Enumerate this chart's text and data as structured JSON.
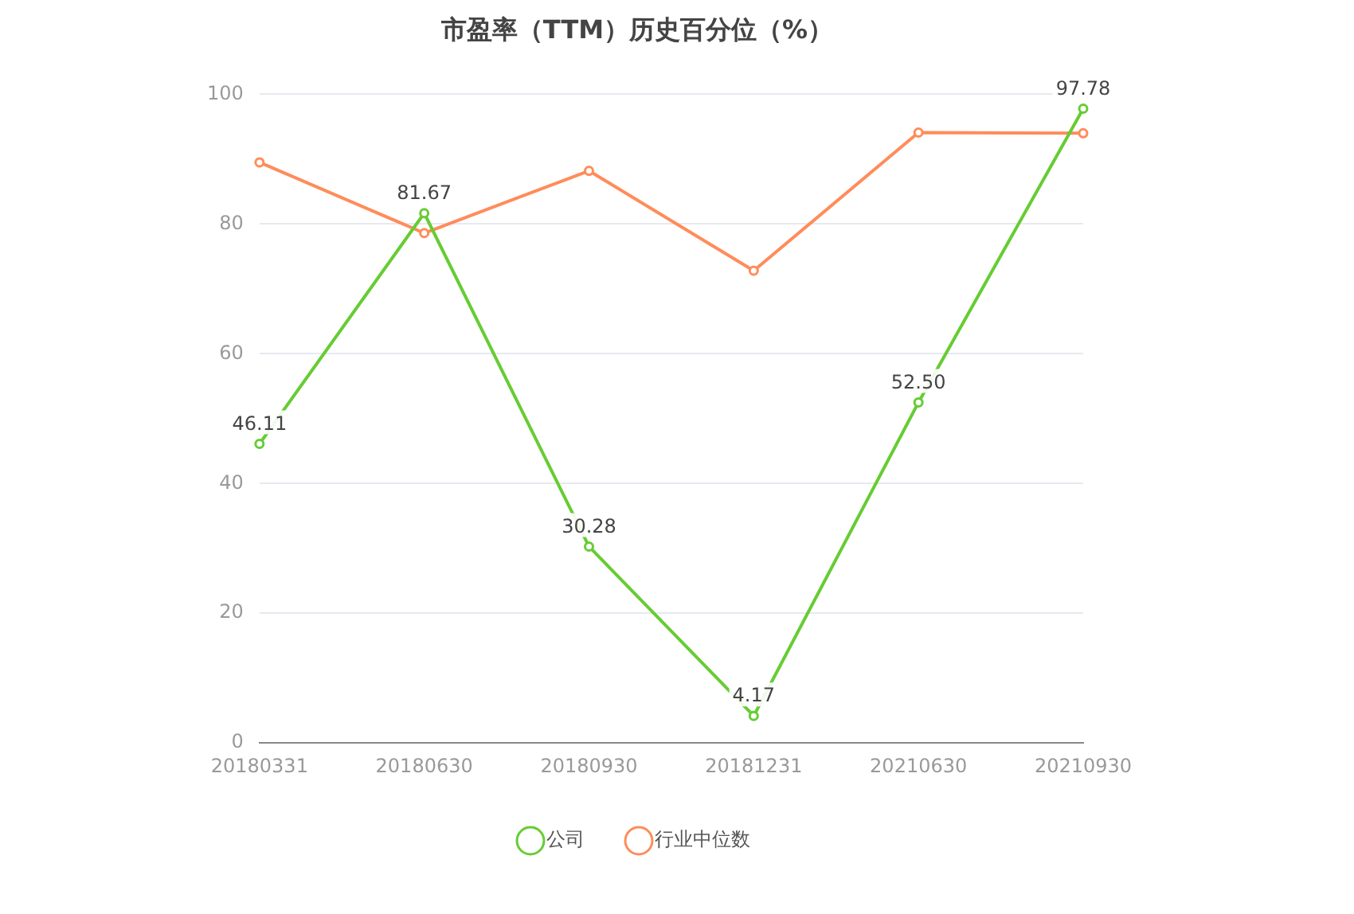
{
  "chart_data": {
    "type": "line",
    "title": "市盈率（TTM）历史百分位（%）",
    "categories": [
      "20180331",
      "20180630",
      "20180930",
      "20181231",
      "20210630",
      "20210930"
    ],
    "series": [
      {
        "name": "公司",
        "color": "#66cc33",
        "values": [
          46.11,
          81.67,
          30.28,
          4.17,
          52.5,
          97.78
        ],
        "value_labels": [
          "46.11",
          "81.67",
          "30.28",
          "4.17",
          "52.50",
          "97.78"
        ]
      },
      {
        "name": "行业中位数",
        "color": "#ff8c5a",
        "values": [
          89.5,
          78.6,
          88.2,
          72.8,
          94.1,
          94.0
        ]
      }
    ],
    "ylim": [
      0,
      100
    ],
    "yticks": [
      0,
      20,
      40,
      60,
      80,
      100
    ],
    "grid": "y",
    "legend": "bottom",
    "marker": "circle",
    "line_style": "solid"
  }
}
